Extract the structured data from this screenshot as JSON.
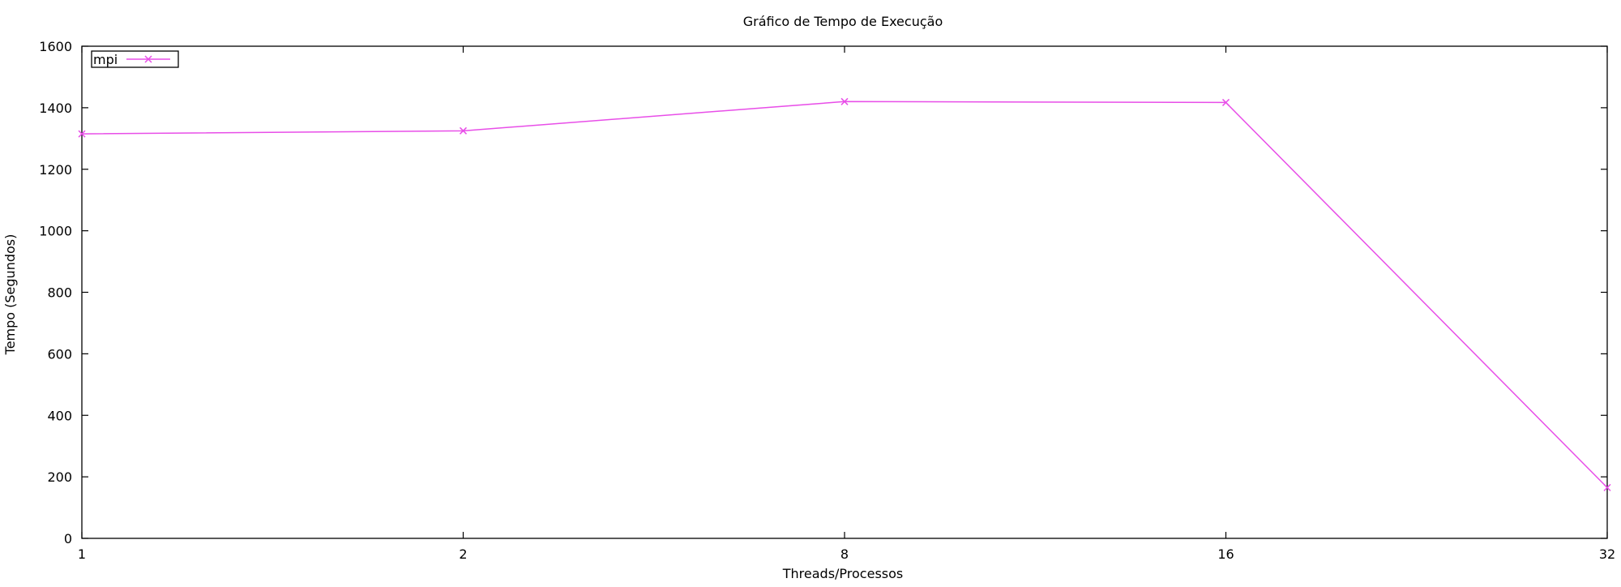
{
  "chart_data": {
    "type": "line",
    "title": "Gráfico de Tempo de Execução",
    "xlabel": "Threads/Processos",
    "ylabel": "Tempo (Segundos)",
    "categories": [
      "1",
      "2",
      "8",
      "16",
      "32"
    ],
    "x_scale": "categorical-evenly-spaced",
    "ylim": [
      0,
      1600
    ],
    "yticks": [
      "0",
      "200",
      "400",
      "600",
      "800",
      "1000",
      "1200",
      "1400",
      "1600"
    ],
    "grid": false,
    "legend_position": "top-left",
    "series": [
      {
        "name": "mpi",
        "color": "#e84ee8",
        "marker": "x",
        "values": [
          1315,
          1325,
          1420,
          1417,
          165
        ]
      }
    ]
  }
}
